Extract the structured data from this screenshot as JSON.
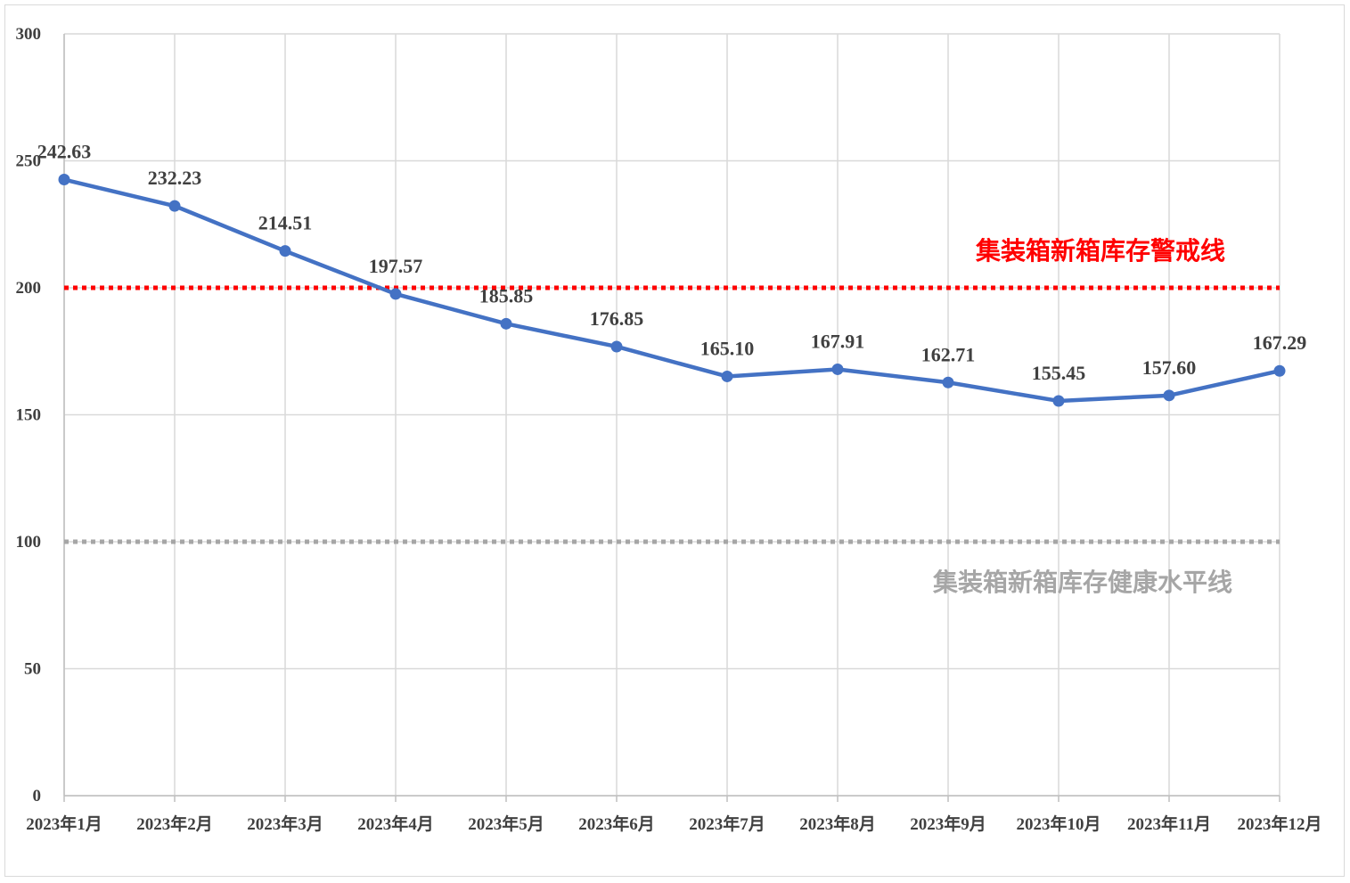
{
  "chart_data": {
    "type": "line",
    "title": "",
    "xlabel": "",
    "ylabel": "",
    "ylim": [
      0,
      300
    ],
    "yticks": [
      "0",
      "50",
      "100",
      "150",
      "200",
      "250",
      "300"
    ],
    "grid": true,
    "categories": [
      "2023年1月",
      "2023年2月",
      "2023年3月",
      "2023年4月",
      "2023年5月",
      "2023年6月",
      "2023年7月",
      "2023年8月",
      "2023年9月",
      "2023年10月",
      "2023年11月",
      "2023年12月"
    ],
    "series": [
      {
        "color": "#4472c4",
        "values": [
          242.63,
          232.23,
          214.51,
          197.57,
          185.85,
          176.85,
          165.1,
          167.91,
          162.71,
          155.45,
          157.6,
          167.29
        ],
        "labels": [
          "242.63",
          "232.23",
          "214.51",
          "197.57",
          "185.85",
          "176.85",
          "165.10",
          "167.91",
          "162.71",
          "155.45",
          "157.60",
          "167.29"
        ]
      }
    ],
    "reference_lines": [
      {
        "value": 200,
        "label": "集装箱新箱库存警戒线",
        "color": "#ff0000"
      },
      {
        "value": 100,
        "label": "集装箱新箱库存健康水平线",
        "color": "#a6a6a6"
      }
    ]
  }
}
